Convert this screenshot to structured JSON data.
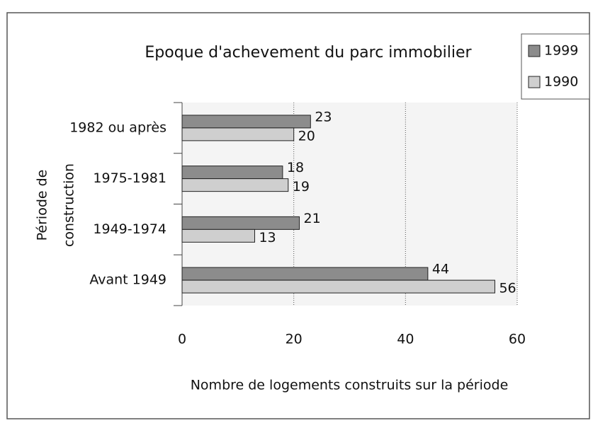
{
  "chart_data": {
    "type": "bar",
    "orientation": "horizontal",
    "title": "Epoque d'achevement du parc immobilier",
    "xlabel": "Nombre de logements construits sur la période",
    "ylabel_lines": [
      "Période de",
      "construction"
    ],
    "categories": [
      "1982 ou après",
      "1975-1981",
      "1949-1974",
      "Avant 1949"
    ],
    "series": [
      {
        "name": "1999",
        "color": "#8c8c8c",
        "values": [
          23,
          18,
          21,
          44
        ]
      },
      {
        "name": "1990",
        "color": "#cfcfcf",
        "values": [
          20,
          19,
          13,
          56
        ]
      }
    ],
    "xlim": [
      0,
      60
    ],
    "xticks": [
      0,
      20,
      40,
      60
    ],
    "grid": true,
    "legend": "top-right"
  }
}
